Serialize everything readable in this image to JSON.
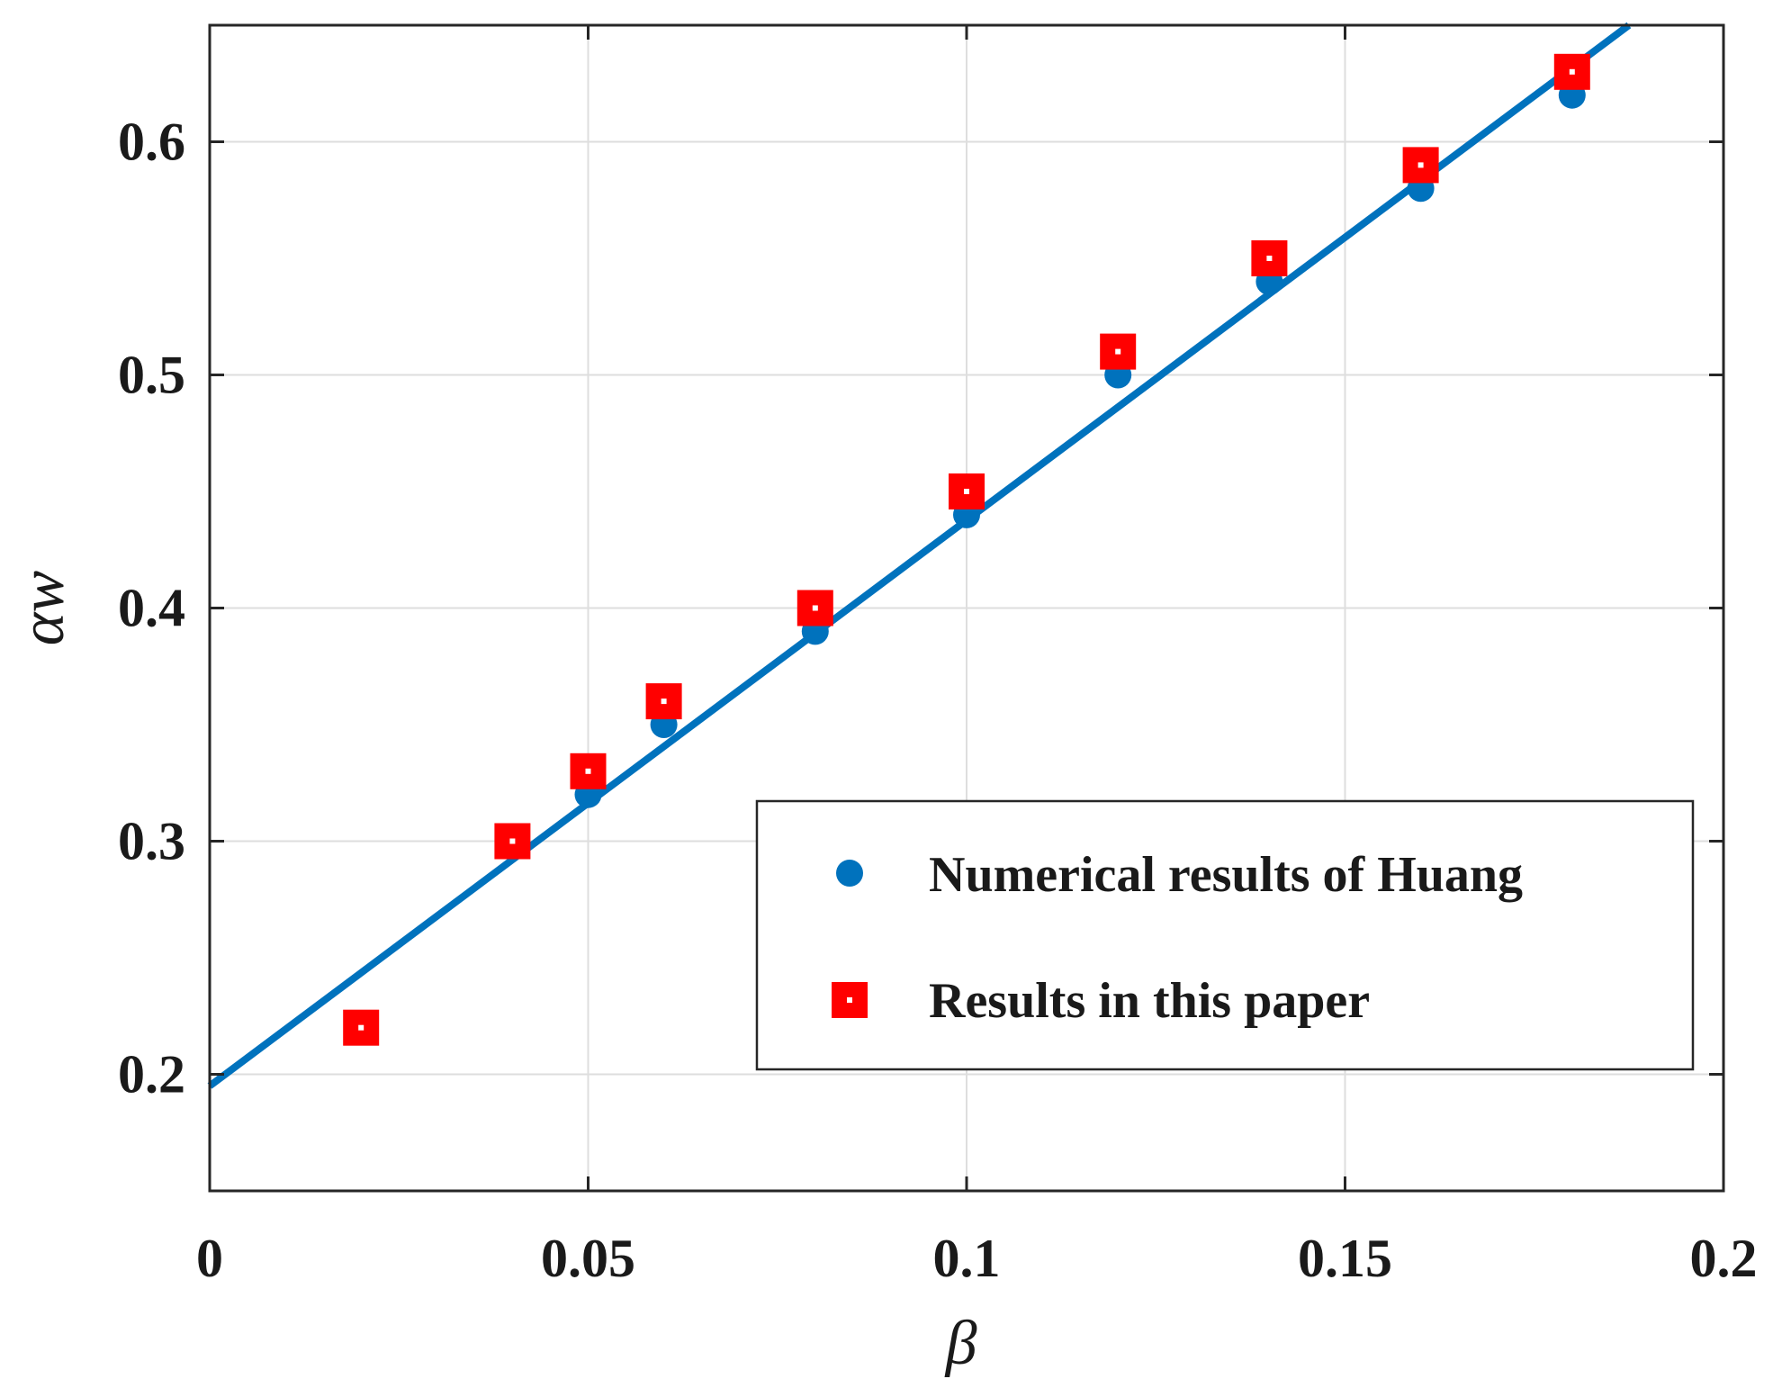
{
  "chart_data": {
    "type": "scatter",
    "title": "",
    "xlabel": "β",
    "ylabel": "αw",
    "xlim": [
      0,
      0.2
    ],
    "ylim": [
      0.15,
      0.65
    ],
    "xticks": [
      0,
      0.05,
      0.1,
      0.15,
      0.2
    ],
    "xtick_labels": [
      "0",
      "0.05",
      "0.1",
      "0.15",
      "0.2"
    ],
    "yticks": [
      0.2,
      0.3,
      0.4,
      0.5,
      0.6
    ],
    "ytick_labels": [
      "0.2",
      "0.3",
      "0.4",
      "0.5",
      "0.6"
    ],
    "grid": true,
    "legend_position": "bottom-right",
    "colors": {
      "huang": "#0072BD",
      "paper": "#FF0000",
      "fit_line": "#0072BD"
    },
    "series": [
      {
        "name": "Numerical results of Huang",
        "marker": "circle",
        "x": [
          0.02,
          0.04,
          0.05,
          0.06,
          0.08,
          0.1,
          0.12,
          0.14,
          0.16,
          0.18
        ],
        "y": [
          0.22,
          0.3,
          0.32,
          0.35,
          0.39,
          0.44,
          0.5,
          0.54,
          0.58,
          0.62
        ]
      },
      {
        "name": "Results in this paper",
        "marker": "square",
        "x": [
          0.02,
          0.04,
          0.05,
          0.06,
          0.08,
          0.1,
          0.12,
          0.14,
          0.16,
          0.18
        ],
        "y": [
          0.22,
          0.3,
          0.33,
          0.36,
          0.4,
          0.45,
          0.51,
          0.55,
          0.59,
          0.63
        ]
      }
    ],
    "fit_line": {
      "x": [
        0,
        0.1875
      ],
      "y": [
        0.195,
        0.65
      ]
    }
  }
}
